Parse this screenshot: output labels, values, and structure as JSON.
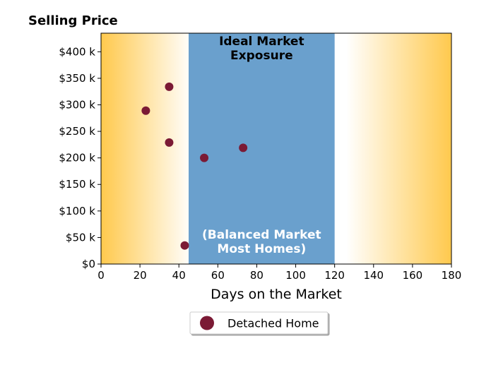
{
  "chart_data": {
    "type": "scatter",
    "title": "Selling Price",
    "xlabel": "Days on the Market",
    "ylabel": "",
    "xlim": [
      0,
      180
    ],
    "ylim": [
      0,
      435000
    ],
    "x_ticks": [
      0,
      20,
      40,
      60,
      80,
      100,
      120,
      140,
      160,
      180
    ],
    "x_tick_labels": [
      "0",
      "20",
      "40",
      "60",
      "80",
      "100",
      "120",
      "140",
      "160",
      "180"
    ],
    "y_ticks": [
      0,
      50000,
      100000,
      150000,
      200000,
      250000,
      300000,
      350000,
      400000
    ],
    "y_tick_labels": [
      "$0",
      "$50 k",
      "$100 k",
      "$150 k",
      "$200 k",
      "$250 k",
      "$300 k",
      "$350 k",
      "$400 k"
    ],
    "grid": false,
    "legend_position": "bottom-center",
    "regions": [
      {
        "x_start": 45,
        "x_end": 120,
        "color": "#6aa0cd",
        "label_top": [
          "Ideal Market",
          "Exposure"
        ],
        "label_bottom": [
          "(Balanced Market",
          "Most Homes)"
        ]
      }
    ],
    "background_gradient": {
      "edge_color": "#ffc94d",
      "center_color": "#ffffff"
    },
    "series": [
      {
        "name": "Detached Home",
        "color": "#7b1a35",
        "x": [
          23,
          35,
          35,
          43,
          53,
          73
        ],
        "y": [
          289000,
          334000,
          229000,
          35000,
          200000,
          219000
        ]
      }
    ]
  }
}
